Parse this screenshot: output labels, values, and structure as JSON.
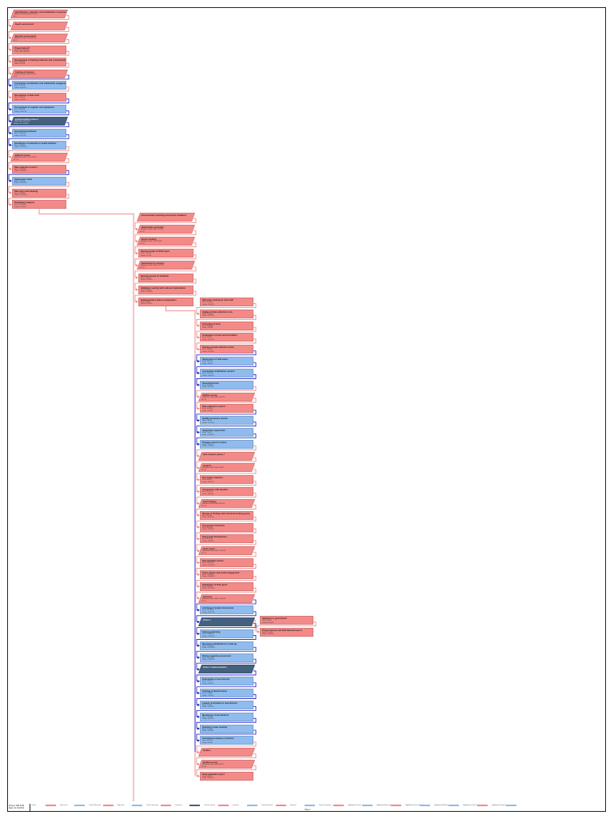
{
  "page": {
    "page_number": "Page 1"
  },
  "colors": {
    "critical": "#f48a88",
    "normal": "#8fbbee",
    "summary": "#44617f",
    "critical_link": "#f08080",
    "normal_link": "#1a1acc"
  },
  "legend": {
    "title": "Project: NMI 2019\nDate: Fri 11/15/19",
    "items": [
      {
        "label": "Critical",
        "color": "#f48a88"
      },
      {
        "label": "Noncritical",
        "color": "#8fbbee"
      },
      {
        "label": "Critical Milestone",
        "color": "#f48a88"
      },
      {
        "label": "Milestone",
        "color": "#8fbbee"
      },
      {
        "label": "Critical Summary",
        "color": "#f48a88"
      },
      {
        "label": "Summary",
        "color": "#44617f"
      },
      {
        "label": "Critical Inserted",
        "color": "#f48a88"
      },
      {
        "label": "Inserted",
        "color": "#8fbbee"
      },
      {
        "label": "Critical External",
        "color": "#f48a88"
      },
      {
        "label": "External",
        "color": "#8fbbee"
      },
      {
        "label": "Project Summary",
        "color": "#f48a88"
      },
      {
        "label": "Highlighted Critical",
        "color": "#8fbbee"
      },
      {
        "label": "Highlighted Noncritical",
        "color": "#f48a88"
      },
      {
        "label": "Highlighted Critical Milestone",
        "color": "#8fbbee"
      },
      {
        "label": "Highlighted Milestone",
        "color": "#8fbbee"
      },
      {
        "label": "Highlighted Critical Summary",
        "color": "#f48a88"
      },
      {
        "label": "Highlighted Summary",
        "color": "#8fbbee"
      }
    ]
  },
  "columns": [
    {
      "nodes": [
        {
          "style": "crit",
          "ms": true,
          "name": "Identification, selection, and mobilization of partners",
          "l1": "Milestone Date: Mon 8/12/19",
          "l2": "ID: 1",
          "l3": ""
        },
        {
          "style": "crit",
          "ms": true,
          "name": "Needs assessment",
          "l1": "",
          "l2": "",
          "l3": ""
        },
        {
          "style": "crit",
          "ms": true,
          "name": "Baseline assessment",
          "l1": "Milestone Date: Thu 8/22/19",
          "l2": "ID: 3",
          "l3": ""
        },
        {
          "style": "crit",
          "ms": false,
          "name": "Project kick-off",
          "l1": "Start: Mon 8/26/19",
          "l2": "Finish: Mon 8/26/19",
          "l3": ""
        },
        {
          "style": "crit",
          "ms": false,
          "name": "Development of training materials and communication plan",
          "l1": "Start: 8/27/19",
          "l2": "Finish: 9/6/19",
          "l3": ""
        },
        {
          "style": "crit",
          "ms": true,
          "name": "Training of trainers",
          "l1": "Milestone Date: Mon 9/9/19",
          "l2": "ID: 6",
          "l3": ""
        },
        {
          "style": "norm",
          "ms": false,
          "name": "Community sensitization and stakeholder engagement",
          "l1": "Start: 9/10/19",
          "l2": "Finish: 9/20/19",
          "l3": ""
        },
        {
          "style": "crit",
          "ms": false,
          "name": "Recruitment of field staff",
          "l1": "Start: 9/23/19",
          "l2": "Finish: 10/4/19",
          "l3": ""
        },
        {
          "style": "norm",
          "ms": false,
          "name": "Procurement of supplies and equipment",
          "l1": "Start: 9/23/19",
          "l2": "Finish: 10/11/19",
          "l3": ""
        },
        {
          "style": "sum",
          "ms": true,
          "name": "Implementation phase 1",
          "l1": "Start: Mon 10/14/19",
          "l2": "Finish: Fri 12/20/19",
          "l3": ""
        },
        {
          "style": "norm",
          "ms": false,
          "name": "Household enrollment",
          "l1": "Start: 10/14/19",
          "l2": "Finish: 11/1/19",
          "l3": ""
        },
        {
          "style": "norm",
          "ms": false,
          "name": "Distribution of materials to health facilities",
          "l1": "Start: 11/4/19",
          "l2": "Finish: 11/15/19",
          "l3": ""
        },
        {
          "style": "crit",
          "ms": true,
          "name": "Midterm review",
          "l1": "Milestone Date: Fri 11/15/19",
          "l2": "ID: 13",
          "l3": ""
        },
        {
          "style": "crit",
          "ms": false,
          "name": "Data collection round 1",
          "l1": "Start: 11/18/19",
          "l2": "Finish: 11/29/19",
          "l3": ""
        },
        {
          "style": "norm",
          "ms": false,
          "name": "Supervision visits",
          "l1": "Start: 12/2/19",
          "l2": "Finish: 12/13/19",
          "l3": ""
        },
        {
          "style": "crit",
          "ms": false,
          "name": "Data entry and cleaning",
          "l1": "Start: 12/2/19",
          "l2": "Finish: 12/20/19",
          "l3": ""
        },
        {
          "style": "crit",
          "ms": false,
          "name": "Preliminary analysis",
          "l1": "Start: 12/23/19",
          "l2": "Finish: 1/10/20",
          "l3": ""
        }
      ]
    },
    {
      "nodes": [
        {
          "style": "crit",
          "ms": true,
          "name": "Dissemination planning and partner feedback",
          "l1": "",
          "l2": "",
          "l3": ""
        },
        {
          "style": "crit",
          "ms": true,
          "name": "Stakeholder workshop",
          "l1": "Milestone Date: Mon 1/13/20",
          "l2": "ID: 19",
          "l3": ""
        },
        {
          "style": "crit",
          "ms": true,
          "name": "Report drafting",
          "l1": "Milestone Date: Fri 1/24/20",
          "l2": "ID: 20",
          "l3": ""
        },
        {
          "style": "crit",
          "ms": false,
          "name": "Internal review of draft report",
          "l1": "Start: 1/27/20",
          "l2": "Finish: 2/7/20",
          "l3": ""
        },
        {
          "style": "crit",
          "ms": true,
          "name": "Submission to ministry",
          "l1": "Milestone Date: Mon 2/10/20",
          "l2": "ID: 22",
          "l3": ""
        },
        {
          "style": "crit",
          "ms": false,
          "name": "Revision based on feedback",
          "l1": "Start: 2/11/20",
          "l2": "Finish: 2/21/20",
          "l3": ""
        },
        {
          "style": "crit",
          "ms": false,
          "name": "Validation meeting with national stakeholders",
          "l1": "Start: 2/24/20",
          "l2": "Finish: 2/28/20",
          "l3": ""
        },
        {
          "style": "crit",
          "ms": false,
          "name": "Implementation phase 2 preparation",
          "l1": "Start: 3/2/20",
          "l2": "Finish: 3/13/20",
          "l3": ""
        }
      ]
    },
    {
      "nodes": [
        {
          "style": "crit",
          "ms": false,
          "name": "Refresher training for field staff",
          "l1": "Start: 3/16/20",
          "l2": "Finish: 3/20/20",
          "l3": ""
        },
        {
          "style": "crit",
          "ms": false,
          "name": "Update of data collection tools",
          "l1": "Start: 3/16/20",
          "l2": "Finish: 3/27/20",
          "l3": ""
        },
        {
          "style": "crit",
          "ms": false,
          "name": "Pretesting of tools",
          "l1": "Start: 3/30/20",
          "l2": "Finish: 4/3/20",
          "l3": ""
        },
        {
          "style": "crit",
          "ms": false,
          "name": "Finalization of tools and translation",
          "l1": "Start: 4/6/20",
          "l2": "Finish: 4/17/20",
          "l3": ""
        },
        {
          "style": "crit",
          "ms": false,
          "name": "Printing of data collection forms",
          "l1": "Start: 4/20/20",
          "l2": "Finish: 4/24/20",
          "l3": ""
        },
        {
          "style": "norm",
          "ms": false,
          "name": "Deployment of field teams",
          "l1": "Start: 4/27/20",
          "l2": "Finish: 5/8/20",
          "l3": ""
        },
        {
          "style": "norm",
          "ms": false,
          "name": "Community mobilization round 2",
          "l1": "Start: 4/27/20",
          "l2": "Finish: 5/15/20",
          "l3": ""
        },
        {
          "style": "norm",
          "ms": false,
          "name": "Household visits",
          "l1": "Start: 5/18/20",
          "l2": "Finish: 6/12/20",
          "l3": ""
        },
        {
          "style": "crit",
          "ms": true,
          "name": "Midline survey",
          "l1": "Milestone Date: Mon 6/15/20",
          "l2": "ID: 34",
          "l3": ""
        },
        {
          "style": "crit",
          "ms": false,
          "name": "Data collection round 2",
          "l1": "Start: 6/16/20",
          "l2": "Finish: 7/3/20",
          "l3": ""
        },
        {
          "style": "norm",
          "ms": false,
          "name": "Quality assurance checks",
          "l1": "Start: 7/6/20",
          "l2": "Finish: 7/17/20",
          "l3": ""
        },
        {
          "style": "norm",
          "ms": false,
          "name": "Supportive supervision",
          "l1": "Start: 7/6/20",
          "l2": "Finish: 7/24/20",
          "l3": ""
        },
        {
          "style": "norm",
          "ms": false,
          "name": "Progress report to donor",
          "l1": "Start: 7/27/20",
          "l2": "Finish: 7/31/20",
          "l3": ""
        },
        {
          "style": "crit",
          "ms": true,
          "name": "Data analysis phase 2",
          "l1": "",
          "l2": "",
          "l3": ""
        },
        {
          "style": "crit",
          "ms": true,
          "name": "Analysis",
          "l1": "Milestone Date: Mon 8/3/20",
          "l2": "ID: 40",
          "l3": ""
        },
        {
          "style": "crit",
          "ms": false,
          "name": "Descriptive statistics",
          "l1": "Start: 8/4/20",
          "l2": "Finish: 8/14/20",
          "l3": ""
        },
        {
          "style": "crit",
          "ms": false,
          "name": "Comparison with baseline",
          "l1": "Start: 8/17/20",
          "l2": "Finish: 8/28/20",
          "l3": ""
        },
        {
          "style": "crit",
          "ms": true,
          "name": "Draft findings",
          "l1": "Milestone Date: Mon 8/31/20",
          "l2": "ID: 43",
          "l3": ""
        },
        {
          "style": "crit",
          "ms": false,
          "name": "Review of findings with technical working group",
          "l1": "Start: 9/1/20",
          "l2": "Finish: 9/11/20",
          "l3": ""
        },
        {
          "style": "crit",
          "ms": false,
          "name": "Incorporate comments",
          "l1": "Start: 9/14/20",
          "l2": "Finish: 9/25/20",
          "l3": ""
        },
        {
          "style": "crit",
          "ms": false,
          "name": "Policy brief development",
          "l1": "Start: 9/28/20",
          "l2": "Finish: 10/9/20",
          "l3": ""
        },
        {
          "style": "crit",
          "ms": true,
          "name": "Final review",
          "l1": "Milestone Date: Mon 10/12/20",
          "l2": "ID: 47",
          "l3": ""
        },
        {
          "style": "crit",
          "ms": false,
          "name": "Dissemination events",
          "l1": "Start: 10/13/20",
          "l2": "Finish: 10/23/20",
          "l3": ""
        },
        {
          "style": "crit",
          "ms": false,
          "name": "Press release and media engagement",
          "l1": "Start: 10/26/20",
          "l2": "Finish: 10/30/20",
          "l3": ""
        },
        {
          "style": "crit",
          "ms": false,
          "name": "Publication of final report",
          "l1": "Start: 11/2/20",
          "l2": "Finish: 11/13/20",
          "l3": ""
        },
        {
          "style": "crit",
          "ms": true,
          "name": "Closeout",
          "l1": "Milestone Date: Mon 11/16/20",
          "l2": "ID: 51",
          "l3": ""
        },
        {
          "style": "norm",
          "ms": false,
          "name": "Archiving of project documents",
          "l1": "Start: 11/17/20",
          "l2": "Finish: 11/27/20",
          "l3": ""
        },
        {
          "style": "sum",
          "ms": true,
          "name": "Phase 3",
          "l1": "",
          "l2": "",
          "l3": ""
        },
        {
          "style": "norm",
          "ms": false,
          "name": "Scale-up planning",
          "l1": "Start: 11/30/20",
          "l2": "Finish: 12/11/20",
          "l3": ""
        },
        {
          "style": "norm",
          "ms": false,
          "name": "Resource mobilization for scale-up",
          "l1": "Start: 12/14/20",
          "l2": "Finish: 12/18/20",
          "l3": ""
        },
        {
          "style": "norm",
          "ms": false,
          "name": "Partner capacity assessment",
          "l1": "Start: 12/14/20",
          "l2": "Finish: 12/31/20",
          "l3": ""
        },
        {
          "style": "sum",
          "ms": true,
          "name": "Phase 3 implementation",
          "l1": "",
          "l2": "",
          "l3": ""
        },
        {
          "style": "norm",
          "ms": false,
          "name": "Onboarding of new districts",
          "l1": "Start: 1/4/21",
          "l2": "Finish: 1/15/21",
          "l3": ""
        },
        {
          "style": "norm",
          "ms": false,
          "name": "Training of district teams",
          "l1": "Start: 1/18/21",
          "l2": "Finish: 1/29/21",
          "l3": ""
        },
        {
          "style": "norm",
          "ms": false,
          "name": "Launch of activities in new districts",
          "l1": "Start: 2/1/21",
          "l2": "Finish: 2/12/21",
          "l3": ""
        },
        {
          "style": "norm",
          "ms": false,
          "name": "Monitoring of new districts",
          "l1": "Start: 2/15/21",
          "l2": "Finish: 3/12/21",
          "l3": ""
        },
        {
          "style": "norm",
          "ms": false,
          "name": "Quarterly review meeting",
          "l1": "Start: 3/15/21",
          "l2": "Finish: 3/19/21",
          "l3": ""
        },
        {
          "style": "norm",
          "ms": false,
          "name": "Technical assistance to districts",
          "l1": "Start: 3/22/21",
          "l2": "Finish: 4/2/21",
          "l3": ""
        },
        {
          "style": "crit",
          "ms": true,
          "name": "Endline",
          "l1": "",
          "l2": "",
          "l3": ""
        },
        {
          "style": "crit",
          "ms": true,
          "name": "Endline survey",
          "l1": "Milestone Date: Mon 4/5/21",
          "l2": "ID: 66",
          "l3": ""
        },
        {
          "style": "crit",
          "ms": false,
          "name": "Final evaluation report",
          "l1": "Start: 4/6/21",
          "l2": "Finish: 4/30/21",
          "l3": ""
        }
      ]
    },
    {
      "nodes": [
        {
          "style": "crit",
          "ms": false,
          "name": "Handover to government",
          "l1": "Start: 5/3/21",
          "l2": "Finish: 5/14/21",
          "l3": ""
        },
        {
          "style": "crit",
          "ms": false,
          "name": "Project closure and final financial report",
          "l1": "Start: 5/17/21",
          "l2": "Finish: 5/28/21",
          "l3": ""
        }
      ]
    }
  ]
}
